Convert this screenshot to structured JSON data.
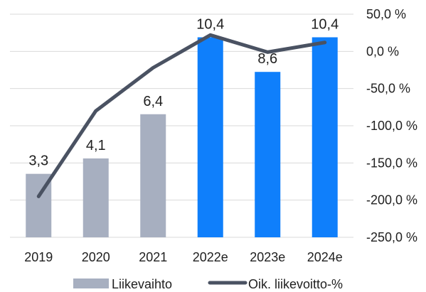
{
  "chart_data": {
    "type": "bar+line",
    "categories": [
      "2019",
      "2020",
      "2021",
      "2022e",
      "2023e",
      "2024e"
    ],
    "bar_series": {
      "name": "Liikevaihto",
      "values": [
        3.3,
        4.1,
        6.4,
        10.4,
        8.6,
        10.4
      ],
      "labels": [
        "3,3",
        "4,1",
        "6,4",
        "10,4",
        "8,6",
        "10,4"
      ],
      "colors": [
        "#a7afc0",
        "#a7afc0",
        "#a7afc0",
        "#0f7ffb",
        "#0f7ffb",
        "#0f7ffb"
      ],
      "axis_range": [
        0,
        11.6
      ]
    },
    "line_series": {
      "name": "Oik. liikevoitto-%",
      "values": [
        -195,
        -80,
        -22,
        22,
        -1,
        12
      ],
      "color": "#4a5262"
    },
    "right_axis": {
      "ticks": [
        50,
        0,
        -50,
        -100,
        -150,
        -200,
        -250
      ],
      "tick_labels": [
        "50,0 %",
        "0,0 %",
        "-50,0 %",
        "-100,0 %",
        "-150,0 %",
        "-200,0 %",
        "-250,0 %"
      ],
      "range": [
        -250,
        50
      ]
    },
    "grid": true,
    "legend_position": "bottom"
  }
}
